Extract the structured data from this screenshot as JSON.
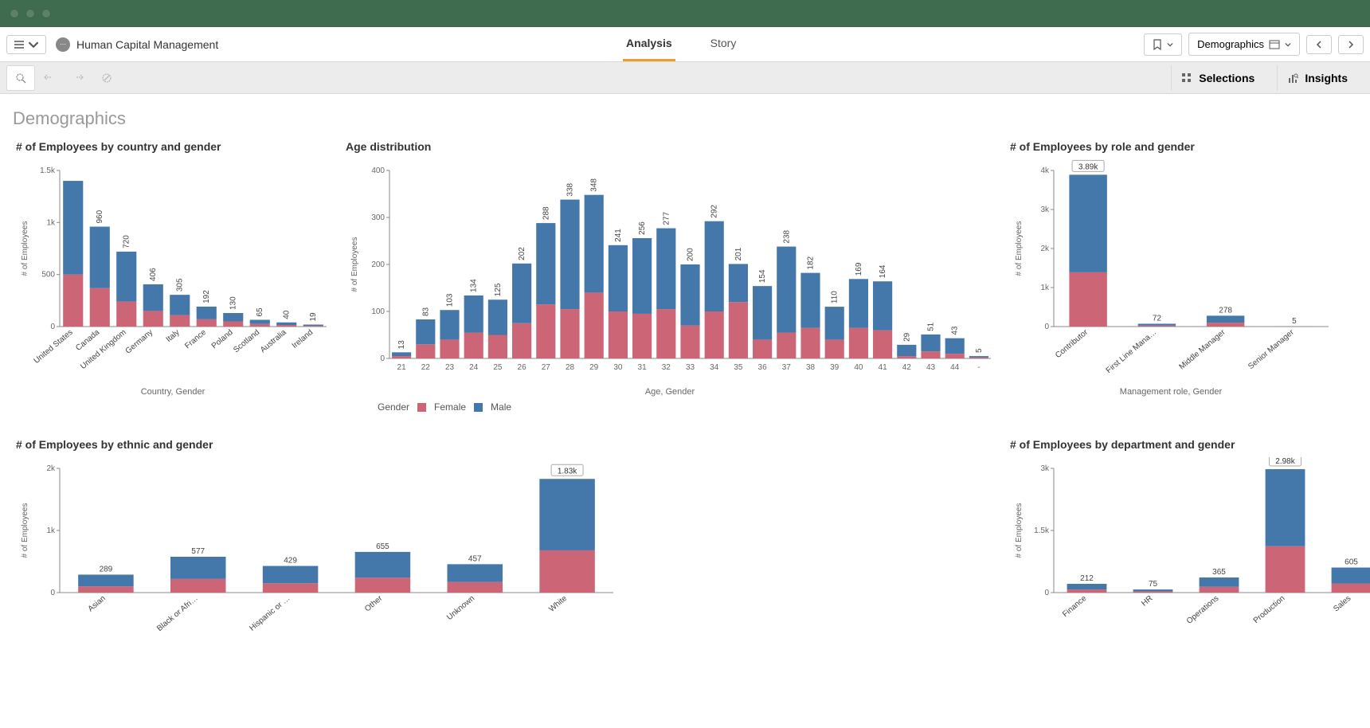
{
  "chrome": {
    "bg_color": "#3f6b4f"
  },
  "app": {
    "title": "Human Capital Management"
  },
  "tabs": {
    "analysis": "Analysis",
    "story": "Story"
  },
  "topRight": {
    "sheetName": "Demographics"
  },
  "secondary": {
    "selections": "Selections",
    "insights": "Insights"
  },
  "pageTitle": "Demographics",
  "colors": {
    "female": "#cc6677",
    "male": "#4477aa",
    "axis": "#888888",
    "bg": "#ffffff"
  },
  "legend": {
    "title": "Gender",
    "female": "Female",
    "male": "Male"
  },
  "chart_country": {
    "type": "stacked-bar",
    "title": "# of Employees by country and gender",
    "ylabel": "# of Employees",
    "xlabel": "Country, Gender",
    "ymax": 1500,
    "ytick_step": 500,
    "ytick_labels": [
      "0",
      "500",
      "1k",
      "1.5k"
    ],
    "categories": [
      "United States",
      "Canada",
      "United Kingdom",
      "Germany",
      "Italy",
      "France",
      "Poland",
      "Scotland",
      "Australia",
      "Ireland"
    ],
    "values": [
      1400,
      960,
      720,
      406,
      305,
      192,
      130,
      65,
      40,
      19
    ],
    "label_text": [
      "",
      "960",
      "720",
      "406",
      "305",
      "192",
      "130",
      "65",
      "40",
      "19"
    ],
    "female": [
      500,
      370,
      240,
      150,
      110,
      70,
      50,
      25,
      15,
      7
    ],
    "male": [
      900,
      590,
      480,
      256,
      195,
      122,
      80,
      40,
      25,
      12
    ]
  },
  "chart_age": {
    "type": "stacked-bar",
    "title": "Age distribution",
    "ylabel": "# of Employees",
    "xlabel": "Age, Gender",
    "ymax": 400,
    "ytick_step": 100,
    "ytick_labels": [
      "0",
      "100",
      "200",
      "300",
      "400"
    ],
    "categories": [
      "21",
      "22",
      "23",
      "24",
      "25",
      "26",
      "27",
      "28",
      "29",
      "30",
      "31",
      "32",
      "33",
      "34",
      "35",
      "36",
      "37",
      "38",
      "39",
      "40",
      "41",
      "42",
      "43",
      "44",
      "-"
    ],
    "values": [
      13,
      83,
      103,
      134,
      125,
      202,
      288,
      338,
      348,
      241,
      256,
      277,
      200,
      292,
      201,
      154,
      238,
      182,
      110,
      169,
      164,
      29,
      51,
      43,
      5
    ],
    "female": [
      5,
      30,
      40,
      55,
      50,
      75,
      115,
      105,
      140,
      100,
      95,
      105,
      70,
      100,
      120,
      40,
      55,
      65,
      40,
      65,
      60,
      5,
      15,
      10,
      2
    ],
    "male": [
      8,
      53,
      63,
      79,
      75,
      127,
      173,
      233,
      208,
      141,
      161,
      172,
      130,
      192,
      81,
      114,
      183,
      117,
      70,
      104,
      104,
      24,
      36,
      33,
      3
    ]
  },
  "chart_role": {
    "type": "stacked-bar",
    "title": "# of Employees by role and gender",
    "ylabel": "# of Employees",
    "xlabel": "Management role, Gender",
    "ymax": 4000,
    "ytick_step": 1000,
    "ytick_labels": [
      "0",
      "1k",
      "2k",
      "3k",
      "4k"
    ],
    "categories": [
      "Contributor",
      "First Line Mana…",
      "Middle Manager",
      "Senior Manager"
    ],
    "values": [
      3890,
      72,
      278,
      5
    ],
    "label_text": [
      "3.89k",
      "72",
      "278",
      "5"
    ],
    "female": [
      1390,
      25,
      100,
      2
    ],
    "male": [
      2500,
      47,
      178,
      3
    ],
    "badge_index": 0
  },
  "chart_ethnic": {
    "type": "stacked-bar",
    "title": "# of Employees by ethnic and gender",
    "ylabel": "# of Employees",
    "ymax": 2000,
    "ytick_step": 1000,
    "ytick_labels": [
      "0",
      "1k",
      "2k"
    ],
    "categories": [
      "Asian",
      "Black or Afri…",
      "Hispanic or …",
      "Other",
      "Unknown",
      "White"
    ],
    "values": [
      289,
      577,
      429,
      655,
      457,
      1830
    ],
    "label_text": [
      "289",
      "577",
      "429",
      "655",
      "457",
      "1.83k"
    ],
    "female": [
      100,
      220,
      150,
      240,
      170,
      680
    ],
    "male": [
      189,
      357,
      279,
      415,
      287,
      1150
    ],
    "badge_index": 5
  },
  "chart_dept": {
    "type": "stacked-bar",
    "title": "# of Employees by department and gender",
    "ylabel": "# of Employees",
    "ymax": 3000,
    "ytick_step": 1500,
    "ytick_labels": [
      "0",
      "1.5k",
      "3k"
    ],
    "categories": [
      "Finance",
      "HR",
      "Operations",
      "Production",
      "Sales"
    ],
    "values": [
      212,
      75,
      365,
      2980,
      605
    ],
    "label_text": [
      "212",
      "75",
      "365",
      "2.98k",
      "605"
    ],
    "female": [
      75,
      30,
      140,
      1120,
      220
    ],
    "male": [
      137,
      45,
      225,
      1860,
      385
    ],
    "badge_index": 3
  }
}
